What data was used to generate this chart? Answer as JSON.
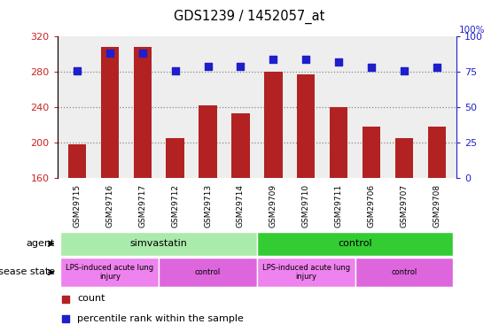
{
  "title": "GDS1239 / 1452057_at",
  "categories": [
    "GSM29715",
    "GSM29716",
    "GSM29717",
    "GSM29712",
    "GSM29713",
    "GSM29714",
    "GSM29709",
    "GSM29710",
    "GSM29711",
    "GSM29706",
    "GSM29707",
    "GSM29708"
  ],
  "counts": [
    198,
    308,
    308,
    205,
    242,
    233,
    280,
    277,
    240,
    218,
    205,
    218
  ],
  "percentiles": [
    76,
    88,
    88,
    76,
    79,
    79,
    84,
    84,
    82,
    78,
    76,
    78
  ],
  "ylim_left": [
    160,
    320
  ],
  "ylim_right": [
    0,
    100
  ],
  "yticks_left": [
    160,
    200,
    240,
    280,
    320
  ],
  "yticks_right": [
    0,
    25,
    50,
    75,
    100
  ],
  "bar_color": "#B22222",
  "dot_color": "#1E1ECC",
  "bg_color": "#FFFFFF",
  "agent_groups": [
    {
      "label": "simvastatin",
      "start": 0,
      "end": 6,
      "color": "#AAEAAA"
    },
    {
      "label": "control",
      "start": 6,
      "end": 12,
      "color": "#33CC33"
    }
  ],
  "disease_groups": [
    {
      "label": "LPS-induced acute lung\ninjury",
      "start": 0,
      "end": 3
    },
    {
      "label": "control",
      "start": 3,
      "end": 6
    },
    {
      "label": "LPS-induced acute lung\ninjury",
      "start": 6,
      "end": 9
    },
    {
      "label": "control",
      "start": 9,
      "end": 12
    }
  ],
  "disease_lps_color": "#EE82EE",
  "disease_ctrl_color": "#DD66DD",
  "dotted_line_color": "#888888",
  "axis_color_left": "#CC2222",
  "axis_color_right": "#2222CC",
  "grid_yticks": [
    200,
    240,
    280
  ],
  "bar_width": 0.55,
  "dot_size": 35,
  "xtick_bg_color": "#CCCCCC"
}
